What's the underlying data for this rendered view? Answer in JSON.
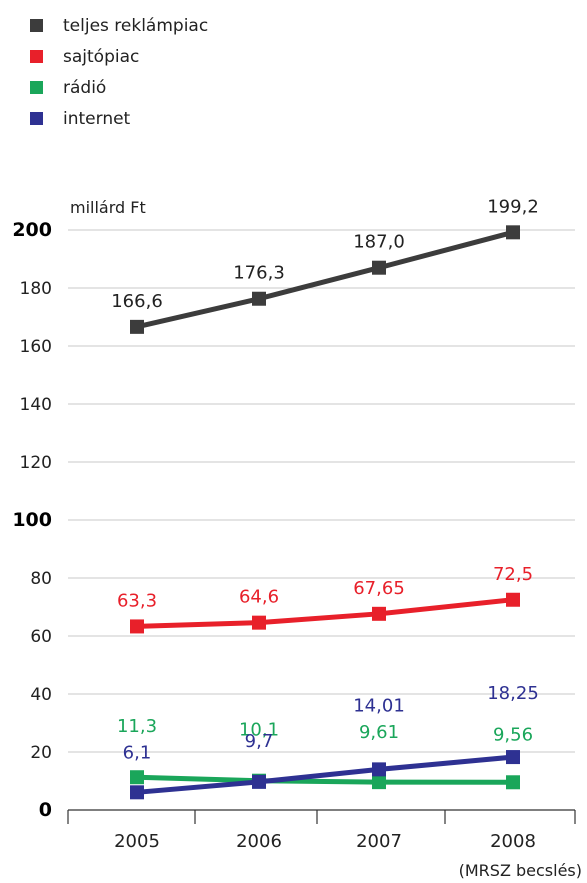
{
  "chart_data": {
    "type": "line",
    "ylabel": "millárd Ft",
    "x": [
      "2005",
      "2006",
      "2007",
      "2008"
    ],
    "x_note": "(MRSZ becslés)",
    "ylim": [
      0,
      200
    ],
    "yticks": [
      0,
      20,
      40,
      60,
      80,
      100,
      120,
      140,
      160,
      180,
      200
    ],
    "yticks_bold": [
      0,
      100,
      200
    ],
    "grid": "horizontal",
    "legend_position": "top-left",
    "series": [
      {
        "name": "teljes reklámpiac",
        "color": "#3c3c3c",
        "values": [
          166.6,
          176.3,
          187.0,
          199.2
        ],
        "labels": [
          "166,6",
          "176,3",
          "187,0",
          "199,2"
        ]
      },
      {
        "name": "sajtópiac",
        "color": "#e8202a",
        "values": [
          63.3,
          64.6,
          67.65,
          72.5
        ],
        "labels": [
          "63,3",
          "64,6",
          "67,65",
          "72,5"
        ]
      },
      {
        "name": "rádió",
        "color": "#1aa65a",
        "values": [
          11.3,
          10.1,
          9.61,
          9.56
        ],
        "labels": [
          "11,3",
          "10,1",
          "9,61",
          "9,56"
        ]
      },
      {
        "name": "internet",
        "color": "#2e3192",
        "values": [
          6.1,
          9.7,
          14.01,
          18.25
        ],
        "labels": [
          "6,1",
          "9,7",
          "14,01",
          "18,25"
        ]
      }
    ]
  }
}
